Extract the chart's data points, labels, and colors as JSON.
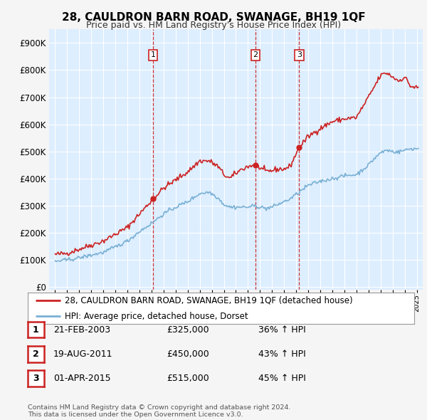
{
  "title": "28, CAULDRON BARN ROAD, SWANAGE, BH19 1QF",
  "subtitle": "Price paid vs. HM Land Registry's House Price Index (HPI)",
  "yticks": [
    0,
    100000,
    200000,
    300000,
    400000,
    500000,
    600000,
    700000,
    800000,
    900000
  ],
  "ytick_labels": [
    "£0",
    "£100K",
    "£200K",
    "£300K",
    "£400K",
    "£500K",
    "£600K",
    "£700K",
    "£800K",
    "£900K"
  ],
  "xmin": 1994.5,
  "xmax": 2025.5,
  "ymin": -10000,
  "ymax": 950000,
  "red_line_color": "#cc2222",
  "blue_line_color": "#7ab0d4",
  "chart_bg_color": "#ddeeff",
  "grid_color": "#ffffff",
  "background_color": "#f5f5f5",
  "transactions": [
    {
      "num": "1",
      "date": 2003.13,
      "price": 325000
    },
    {
      "num": "2",
      "date": 2011.63,
      "price": 450000
    },
    {
      "num": "3",
      "date": 2015.25,
      "price": 515000
    }
  ],
  "legend_entries": [
    "28, CAULDRON BARN ROAD, SWANAGE, BH19 1QF (detached house)",
    "HPI: Average price, detached house, Dorset"
  ],
  "table_rows": [
    {
      "num": "1",
      "date": "21-FEB-2003",
      "price": "£325,000",
      "hpi": "36% ↑ HPI"
    },
    {
      "num": "2",
      "date": "19-AUG-2011",
      "price": "£450,000",
      "hpi": "43% ↑ HPI"
    },
    {
      "num": "3",
      "date": "01-APR-2015",
      "price": "£515,000",
      "hpi": "45% ↑ HPI"
    }
  ],
  "footnote": "Contains HM Land Registry data © Crown copyright and database right 2024.\nThis data is licensed under the Open Government Licence v3.0."
}
